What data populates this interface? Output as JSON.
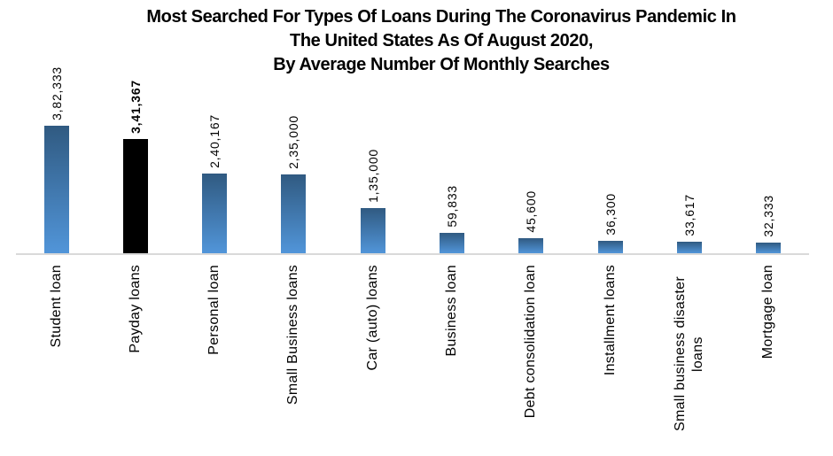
{
  "title": {
    "lines": [
      "Most Searched For Types Of Loans During The Coronavirus Pandemic In",
      "The United States As Of August 2020,",
      "By Average Number Of Monthly Searches"
    ]
  },
  "chart_data": {
    "type": "bar",
    "orientation": "vertical",
    "title": "Most Searched For Types Of Loans During The Coronavirus Pandemic In The United States As Of August 2020, By Average Number Of Monthly Searches",
    "xlabel": "",
    "ylabel": "",
    "grid": false,
    "legend": false,
    "ylim": [
      0,
      400000
    ],
    "categories": [
      "Student loan",
      "Payday loans",
      "Personal loan",
      "Small Business loans",
      "Car (auto) loans",
      "Business loan",
      "Debt consolidation loan",
      "Installment loans",
      "Small business disaster loans",
      "Mortgage loan"
    ],
    "values": [
      382333,
      341367,
      240167,
      235000,
      135000,
      59833,
      45600,
      36300,
      33617,
      32333
    ],
    "value_labels": [
      "3,82,333",
      "3,41,367",
      "2,40,167",
      "2,35,000",
      "1,35,000",
      "59,833",
      "45,600",
      "36,300",
      "33,617",
      "32,333"
    ],
    "emphasized_index": 1,
    "label_rotation_degrees": 90,
    "colors": {
      "bar_gradient_top": "#305a81",
      "bar_gradient_bottom": "#5195d9",
      "emphasis_bar": "#000000",
      "axis_line": "#d9d9d9",
      "text": "#000000",
      "background": "#ffffff"
    }
  }
}
